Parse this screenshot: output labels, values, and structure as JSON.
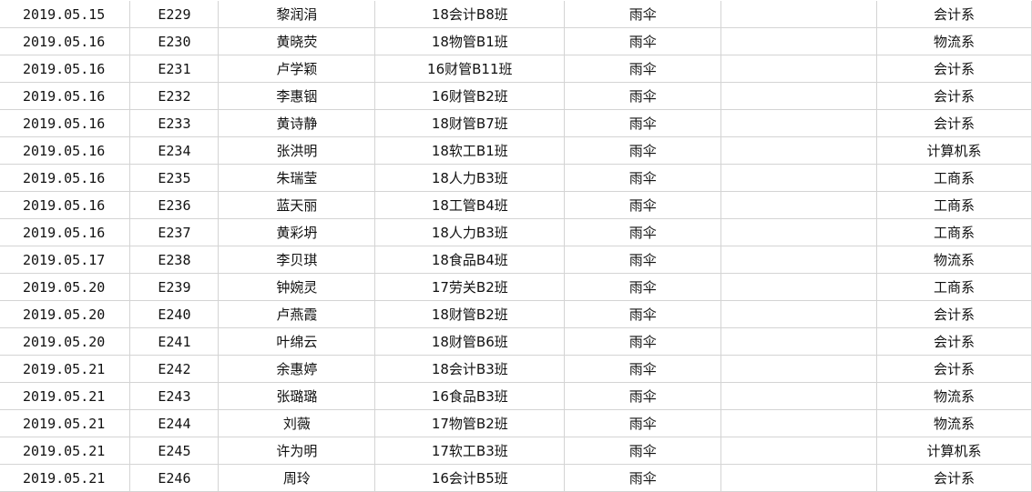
{
  "rows": [
    {
      "date": "2019.05.15",
      "code": "E229",
      "name": "黎润涓",
      "class": "18会计B8班",
      "item": "雨伞",
      "note": "",
      "dept": "会计系"
    },
    {
      "date": "2019.05.16",
      "code": "E230",
      "name": "黄晓荧",
      "class": "18物管B1班",
      "item": "雨伞",
      "note": "",
      "dept": "物流系"
    },
    {
      "date": "2019.05.16",
      "code": "E231",
      "name": "卢学颖",
      "class": "16财管B11班",
      "item": "雨伞",
      "note": "",
      "dept": "会计系"
    },
    {
      "date": "2019.05.16",
      "code": "E232",
      "name": "李惠铟",
      "class": "16财管B2班",
      "item": "雨伞",
      "note": "",
      "dept": "会计系"
    },
    {
      "date": "2019.05.16",
      "code": "E233",
      "name": "黄诗静",
      "class": "18财管B7班",
      "item": "雨伞",
      "note": "",
      "dept": "会计系"
    },
    {
      "date": "2019.05.16",
      "code": "E234",
      "name": "张洪明",
      "class": "18软工B1班",
      "item": "雨伞",
      "note": "",
      "dept": "计算机系"
    },
    {
      "date": "2019.05.16",
      "code": "E235",
      "name": "朱瑞莹",
      "class": "18人力B3班",
      "item": "雨伞",
      "note": "",
      "dept": "工商系"
    },
    {
      "date": "2019.05.16",
      "code": "E236",
      "name": "蓝天丽",
      "class": "18工管B4班",
      "item": "雨伞",
      "note": "",
      "dept": "工商系"
    },
    {
      "date": "2019.05.16",
      "code": "E237",
      "name": "黄彩坍",
      "class": "18人力B3班",
      "item": "雨伞",
      "note": "",
      "dept": "工商系"
    },
    {
      "date": "2019.05.17",
      "code": "E238",
      "name": "李贝琪",
      "class": "18食品B4班",
      "item": "雨伞",
      "note": "",
      "dept": "物流系"
    },
    {
      "date": "2019.05.20",
      "code": "E239",
      "name": "钟婉灵",
      "class": "17劳关B2班",
      "item": "雨伞",
      "note": "",
      "dept": "工商系"
    },
    {
      "date": "2019.05.20",
      "code": "E240",
      "name": "卢燕霞",
      "class": "18财管B2班",
      "item": "雨伞",
      "note": "",
      "dept": "会计系"
    },
    {
      "date": "2019.05.20",
      "code": "E241",
      "name": "叶绵云",
      "class": "18财管B6班",
      "item": "雨伞",
      "note": "",
      "dept": "会计系"
    },
    {
      "date": "2019.05.21",
      "code": "E242",
      "name": "余惠婷",
      "class": "18会计B3班",
      "item": "雨伞",
      "note": "",
      "dept": "会计系"
    },
    {
      "date": "2019.05.21",
      "code": "E243",
      "name": "张璐璐",
      "class": "16食品B3班",
      "item": "雨伞",
      "note": "",
      "dept": "物流系"
    },
    {
      "date": "2019.05.21",
      "code": "E244",
      "name": "刘薇",
      "class": "17物管B2班",
      "item": "雨伞",
      "note": "",
      "dept": "物流系"
    },
    {
      "date": "2019.05.21",
      "code": "E245",
      "name": "许为明",
      "class": "17软工B3班",
      "item": "雨伞",
      "note": "",
      "dept": "计算机系"
    },
    {
      "date": "2019.05.21",
      "code": "E246",
      "name": "周玲",
      "class": "16会计B5班",
      "item": "雨伞",
      "note": "",
      "dept": "会计系"
    }
  ]
}
